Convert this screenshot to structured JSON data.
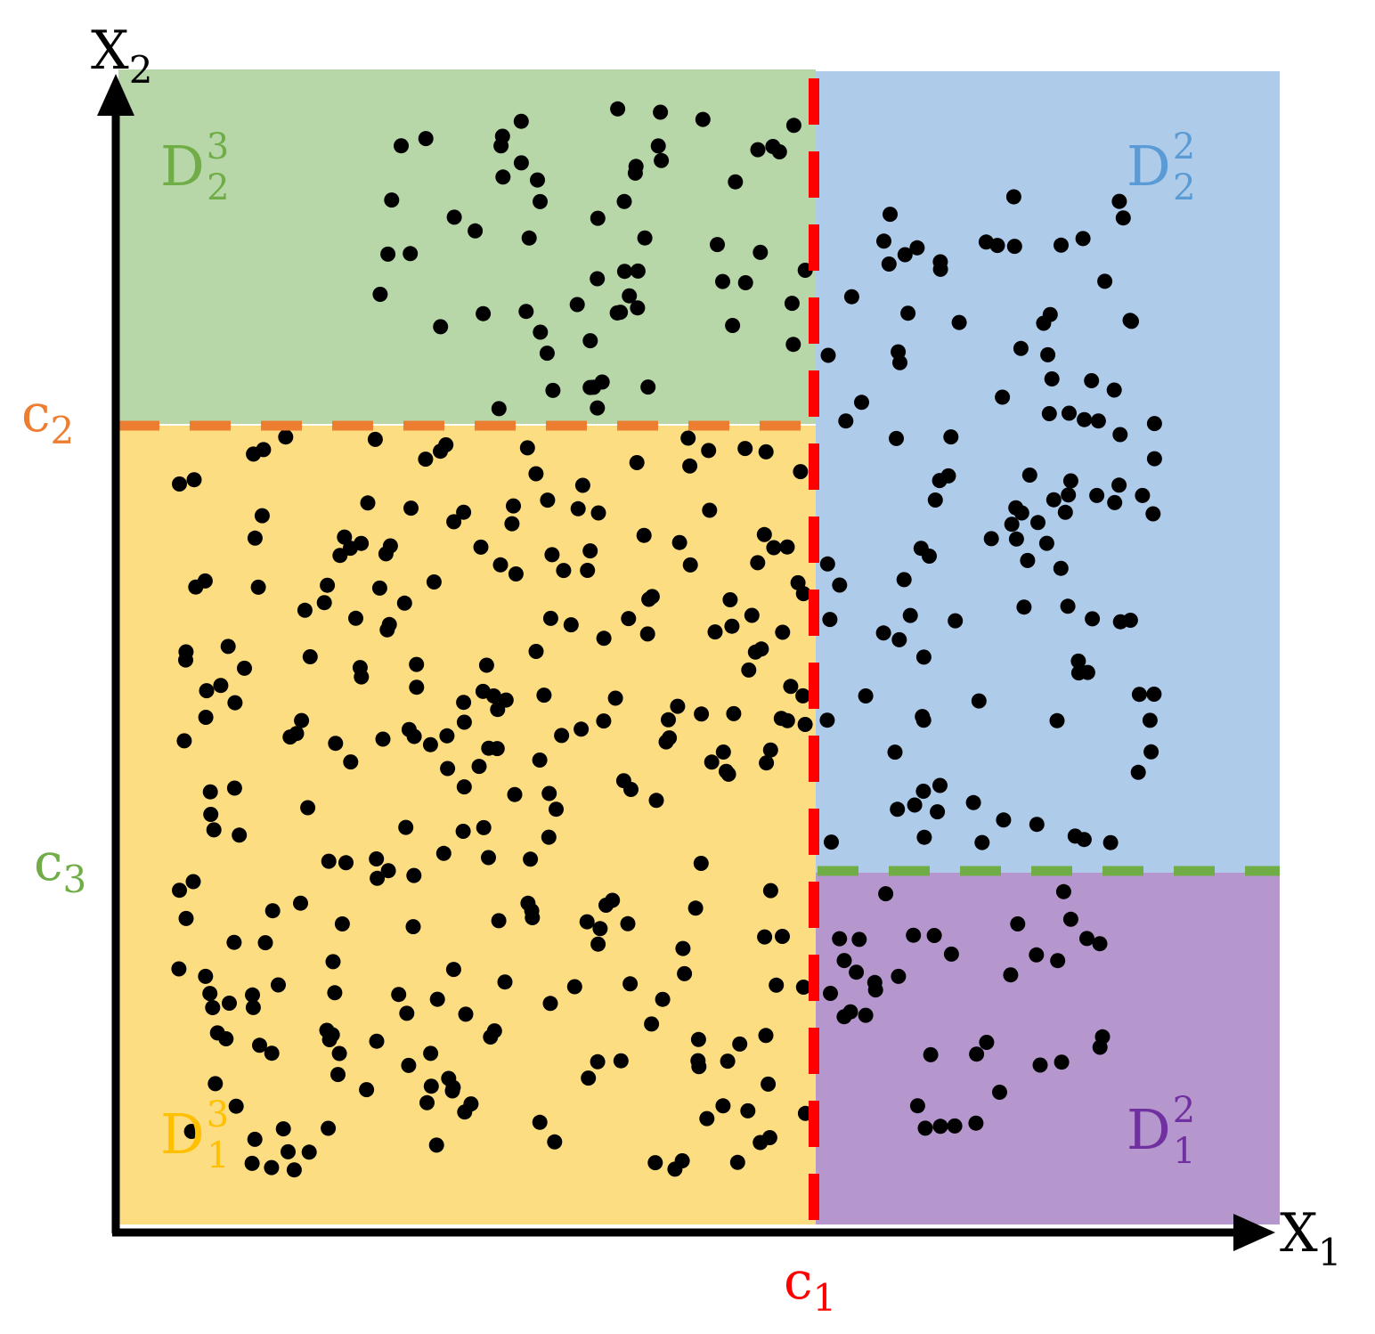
{
  "axes": {
    "x_base": "X",
    "x_sub": "1",
    "y_base": "X",
    "y_sub": "2"
  },
  "thresholds": {
    "c1": {
      "base": "c",
      "sub": "1",
      "color": "#ff0000"
    },
    "c2": {
      "base": "c",
      "sub": "2",
      "color": "#ed7d31"
    },
    "c3": {
      "base": "c",
      "sub": "3",
      "color": "#70ad47"
    }
  },
  "regions": {
    "d23": {
      "base": "D",
      "sub": "2",
      "sup": "3",
      "fill": "#b7d7a8",
      "text_color": "#70ad47"
    },
    "d22": {
      "base": "D",
      "sub": "2",
      "sup": "2",
      "fill": "#aecbe9",
      "text_color": "#5b9bd5"
    },
    "d13": {
      "base": "D",
      "sub": "1",
      "sup": "3",
      "fill": "#fddd82",
      "text_color": "#ffc000"
    },
    "d12": {
      "base": "D",
      "sub": "1",
      "sup": "2",
      "fill": "#b597cd",
      "text_color": "#7030a0"
    }
  },
  "points_color": "#000000"
}
